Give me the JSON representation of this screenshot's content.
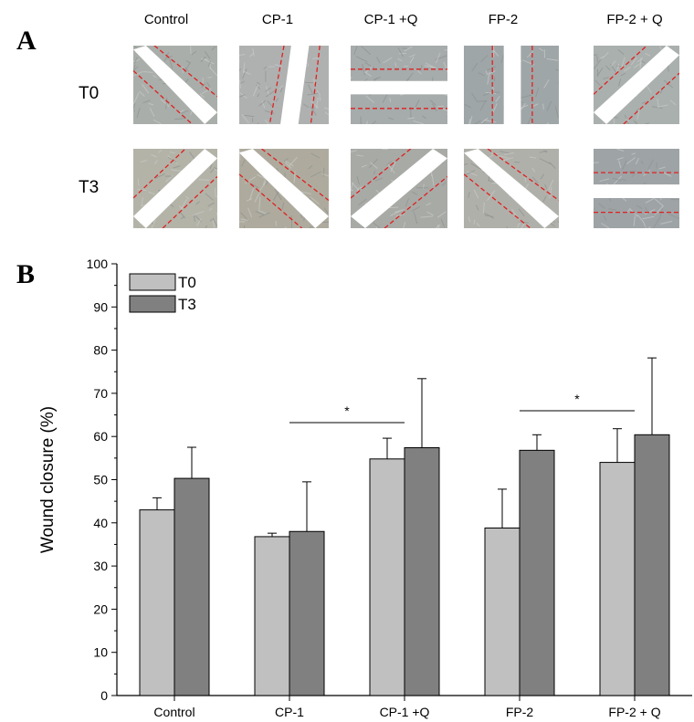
{
  "panel_a": {
    "letter": "A",
    "columns": [
      "Control",
      "CP-1",
      "CP-1 +Q",
      "FP-2",
      "FP-2 + Q"
    ],
    "rows": [
      "T0",
      "T3"
    ],
    "scratch_line_color": "#e02020"
  },
  "panel_b": {
    "letter": "B"
  },
  "chart_data": {
    "type": "bar",
    "categories": [
      "Control",
      "CP-1",
      "CP-1 +Q",
      "FP-2",
      "FP-2 + Q"
    ],
    "series": [
      {
        "name": "T0",
        "color": "#c0c0c0",
        "values": [
          43,
          36.8,
          54.8,
          38.8,
          54
        ],
        "errors": [
          2.8,
          0.8,
          4.8,
          9,
          7.8
        ]
      },
      {
        "name": "T3",
        "color": "#808080",
        "values": [
          50.3,
          38,
          57.4,
          56.8,
          60.4
        ],
        "errors": [
          7.2,
          11.5,
          16,
          3.6,
          17.8
        ]
      }
    ],
    "ylabel": "Wound closure (%)",
    "xlabel": "",
    "ylim": [
      0,
      100
    ],
    "yticks": [
      0,
      10,
      20,
      30,
      40,
      50,
      60,
      70,
      80,
      90,
      100
    ],
    "legend_position": "top-left",
    "significance": [
      {
        "from": "CP-1",
        "to": "CP-1 +Q",
        "label": "*"
      },
      {
        "from": "FP-2",
        "to": "FP-2 + Q",
        "label": "*"
      }
    ]
  }
}
